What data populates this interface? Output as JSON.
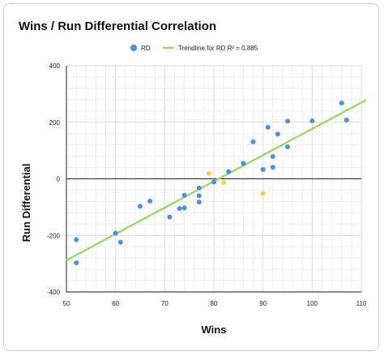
{
  "chart_data": {
    "type": "scatter",
    "title": "Wins / Run Differential Correlation",
    "xlabel": "Wins",
    "ylabel": "Run Differential",
    "xlim": [
      50,
      110
    ],
    "ylim": [
      -400,
      400
    ],
    "xticks": [
      50,
      60,
      70,
      80,
      90,
      100,
      110
    ],
    "yticks": [
      -400,
      -200,
      0,
      200,
      400
    ],
    "grid": true,
    "legend_position": "top",
    "colors": {
      "points": "#4a90e2",
      "highlight": "#f5d33c",
      "trendline": "#9fd86b"
    },
    "series": [
      {
        "name": "RD",
        "points": [
          [
            52,
            -215
          ],
          [
            52,
            -297
          ],
          [
            60,
            -192
          ],
          [
            61,
            -224
          ],
          [
            65,
            -97
          ],
          [
            67,
            -79
          ],
          [
            71,
            -135
          ],
          [
            73,
            -105
          ],
          [
            74,
            -103
          ],
          [
            74,
            -58
          ],
          [
            77,
            -32
          ],
          [
            77,
            -60
          ],
          [
            77,
            -82
          ],
          [
            80,
            -11
          ],
          [
            83,
            25
          ],
          [
            86,
            55
          ],
          [
            88,
            131
          ],
          [
            90,
            33
          ],
          [
            91,
            182
          ],
          [
            92,
            41
          ],
          [
            92,
            79
          ],
          [
            93,
            158
          ],
          [
            95,
            204
          ],
          [
            95,
            113
          ],
          [
            100,
            205
          ],
          [
            106,
            268
          ],
          [
            107,
            208
          ]
        ]
      }
    ],
    "highlighted_points": [
      [
        79,
        19
      ],
      [
        82,
        -13
      ],
      [
        90,
        -52
      ]
    ],
    "trendline": {
      "name": "Trendline for RD R² = 0.885",
      "x": [
        50,
        111
      ],
      "y": [
        -288,
        279
      ]
    }
  }
}
